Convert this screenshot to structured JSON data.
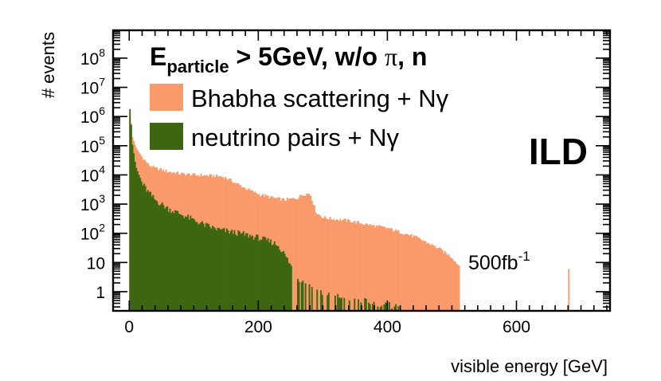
{
  "chart_data": {
    "type": "histogram",
    "log_y": true,
    "xlabel": "visible energy [GeV]",
    "ylabel": "# events",
    "xlim": [
      -25,
      745
    ],
    "ylim": [
      0.22,
      900000000
    ],
    "x_ticks": [
      "0",
      "200",
      "400",
      "600"
    ],
    "y_ticks": [
      "1",
      "10",
      "10^2",
      "10^3",
      "10^4",
      "10^5",
      "10^6",
      "10^7",
      "10^8"
    ],
    "header": {
      "prefix": "E",
      "subscript": "particle",
      "text": " > 5GeV, w/o ",
      "pi": "π",
      "suffix": ", n"
    },
    "experiment_label": "ILD",
    "luminosity": {
      "value": "500fb",
      "exponent": "-1"
    },
    "series": [
      {
        "name": "Bhabha scattering + Nγ",
        "color": "#fa9a6a",
        "points": [
          [
            0,
            1000000
          ],
          [
            2,
            1000000
          ],
          [
            5,
            200000
          ],
          [
            10,
            90000
          ],
          [
            20,
            40000
          ],
          [
            30,
            22000
          ],
          [
            40,
            17000
          ],
          [
            60,
            13000
          ],
          [
            80,
            11000
          ],
          [
            100,
            10000
          ],
          [
            120,
            9500
          ],
          [
            140,
            9000
          ],
          [
            150,
            8000
          ],
          [
            160,
            6000
          ],
          [
            180,
            3500
          ],
          [
            200,
            2200
          ],
          [
            220,
            1700
          ],
          [
            240,
            1400
          ],
          [
            260,
            1600
          ],
          [
            270,
            2200
          ],
          [
            280,
            2300
          ],
          [
            290,
            500
          ],
          [
            300,
            350
          ],
          [
            320,
            300
          ],
          [
            340,
            270
          ],
          [
            360,
            220
          ],
          [
            380,
            180
          ],
          [
            400,
            150
          ],
          [
            420,
            110
          ],
          [
            440,
            80
          ],
          [
            460,
            50
          ],
          [
            480,
            30
          ],
          [
            500,
            15
          ],
          [
            510,
            8
          ],
          [
            512,
            8
          ]
        ],
        "extra_peak": {
          "x": 680,
          "y": 6
        }
      },
      {
        "name": "neutrino pairs + Nγ",
        "color": "#3c6611",
        "points": [
          [
            0,
            1800000
          ],
          [
            2,
            1800000
          ],
          [
            4,
            150000
          ],
          [
            10,
            20000
          ],
          [
            20,
            5000
          ],
          [
            30,
            2500
          ],
          [
            40,
            1400
          ],
          [
            60,
            700
          ],
          [
            80,
            450
          ],
          [
            100,
            280
          ],
          [
            120,
            180
          ],
          [
            140,
            130
          ],
          [
            160,
            110
          ],
          [
            180,
            90
          ],
          [
            200,
            70
          ],
          [
            220,
            50
          ],
          [
            230,
            40
          ],
          [
            240,
            20
          ],
          [
            250,
            8
          ],
          [
            260,
            3
          ],
          [
            280,
            1.5
          ],
          [
            300,
            0.9
          ],
          [
            320,
            0.7
          ],
          [
            340,
            0.6
          ],
          [
            360,
            0.5
          ],
          [
            380,
            0.4
          ],
          [
            400,
            0.35
          ],
          [
            420,
            0.3
          ]
        ]
      }
    ]
  }
}
